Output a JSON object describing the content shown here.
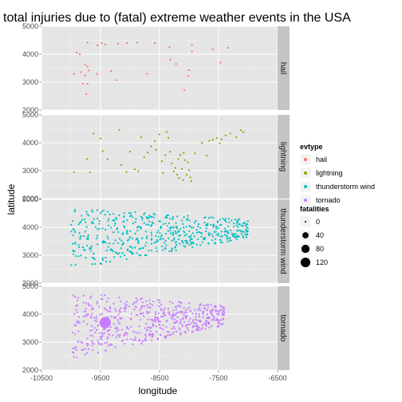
{
  "chart_data": {
    "type": "scatter",
    "title": "total injuries due to (fatal) extreme weather events in the USA",
    "xlabel": "longitude",
    "ylabel": "latitude",
    "xlim": [
      -10500,
      -6500
    ],
    "ylim": [
      2000,
      5000
    ],
    "x_ticks": [
      -10500,
      -9500,
      -8500,
      -7500,
      -6500
    ],
    "x_tick_labels": [
      "-10500",
      "-9500",
      "-8500",
      "-7500",
      "-6500"
    ],
    "y_ticks": [
      2000,
      3000,
      4000,
      5000
    ],
    "y_tick_labels": [
      "2000",
      "3000",
      "4000",
      "5000"
    ],
    "facet_by": "evtype",
    "facets": [
      "hail",
      "lightning",
      "thunderstorm wind",
      "tornado"
    ],
    "colors": {
      "hail": "#F8766D",
      "lightning": "#7CAE00",
      "thunderstorm wind": "#00BFC4",
      "tornado": "#C77CFF"
    },
    "grid": true,
    "legend": {
      "placement": "right",
      "color_title": "evtype",
      "color_entries": [
        "hail",
        "lightning",
        "thunderstorm wind",
        "tornado"
      ],
      "size_title": "fatalities",
      "size_entries": [
        "0",
        "40",
        "80",
        "120"
      ],
      "size_values": [
        0,
        40,
        80,
        120
      ]
    },
    "series": [
      {
        "name": "hail",
        "points": [
          [
            -9900,
            4050
          ],
          [
            -9850,
            4000
          ],
          [
            -9720,
            4420
          ],
          [
            -9550,
            4320
          ],
          [
            -9480,
            4400
          ],
          [
            -9420,
            4350
          ],
          [
            -9200,
            4380
          ],
          [
            -9050,
            4400
          ],
          [
            -8880,
            4420
          ],
          [
            -8580,
            4400
          ],
          [
            -8330,
            4260
          ],
          [
            -7950,
            4330
          ],
          [
            -7950,
            4100
          ],
          [
            -7600,
            4180
          ],
          [
            -7340,
            4230
          ],
          [
            -7470,
            3700
          ],
          [
            -9950,
            3300
          ],
          [
            -9830,
            3360
          ],
          [
            -9760,
            3630
          ],
          [
            -9720,
            3560
          ],
          [
            -9700,
            3420
          ],
          [
            -9560,
            3300
          ],
          [
            -9320,
            3400
          ],
          [
            -9230,
            3070
          ],
          [
            -8710,
            3300
          ],
          [
            -8320,
            3800
          ],
          [
            -8220,
            3650
          ],
          [
            -8000,
            3430
          ],
          [
            -8010,
            3220
          ],
          [
            -8080,
            2720
          ],
          [
            -9740,
            2570
          ],
          [
            -9800,
            2950
          ],
          [
            -9720,
            2940
          ],
          [
            -9760,
            3240
          ]
        ]
      },
      {
        "name": "lightning",
        "points": [
          [
            -9950,
            2950
          ],
          [
            -9680,
            2940
          ],
          [
            -9730,
            3420
          ],
          [
            -9620,
            4330
          ],
          [
            -9500,
            4150
          ],
          [
            -9460,
            3700
          ],
          [
            -9380,
            3410
          ],
          [
            -9180,
            4460
          ],
          [
            -9150,
            3200
          ],
          [
            -9060,
            2960
          ],
          [
            -9000,
            3680
          ],
          [
            -8920,
            3050
          ],
          [
            -8860,
            2980
          ],
          [
            -8810,
            4200
          ],
          [
            -8760,
            3480
          ],
          [
            -8700,
            3650
          ],
          [
            -8640,
            3870
          ],
          [
            -8580,
            4050
          ],
          [
            -8560,
            3750
          ],
          [
            -8500,
            4300
          ],
          [
            -8460,
            3340
          ],
          [
            -8440,
            2920
          ],
          [
            -8400,
            3550
          ],
          [
            -8380,
            4390
          ],
          [
            -8350,
            4180
          ],
          [
            -8320,
            3680
          ],
          [
            -8290,
            3260
          ],
          [
            -8260,
            2980
          ],
          [
            -8230,
            3100
          ],
          [
            -8200,
            2860
          ],
          [
            -8170,
            2740
          ],
          [
            -8150,
            3560
          ],
          [
            -8120,
            3070
          ],
          [
            -8100,
            2670
          ],
          [
            -8070,
            3380
          ],
          [
            -8040,
            2850
          ],
          [
            -8020,
            3300
          ],
          [
            -8000,
            3020
          ],
          [
            -7980,
            2760
          ],
          [
            -7960,
            2630
          ],
          [
            -8090,
            3640
          ],
          [
            -7780,
            4000
          ],
          [
            -7660,
            4070
          ],
          [
            -7600,
            4110
          ],
          [
            -7530,
            4170
          ],
          [
            -7450,
            4130
          ],
          [
            -7380,
            4260
          ],
          [
            -7300,
            4330
          ],
          [
            -7200,
            4200
          ],
          [
            -7120,
            4450
          ],
          [
            -7080,
            4380
          ],
          [
            -7480,
            3980
          ],
          [
            -7700,
            3540
          ],
          [
            -7900,
            3620
          ],
          [
            -8180,
            3420
          ]
        ]
      },
      {
        "name": "thunderstorm wind",
        "generated": true,
        "x_range": [
          -10000,
          -7000
        ],
        "y_range": [
          2500,
          4700
        ],
        "count": 520
      },
      {
        "name": "tornado",
        "generated": true,
        "x_range": [
          -9980,
          -7400
        ],
        "y_range": [
          2450,
          4850
        ],
        "count": 560,
        "highlight": {
          "x": -9420,
          "y": 3700,
          "fatalities": 120
        }
      }
    ]
  }
}
